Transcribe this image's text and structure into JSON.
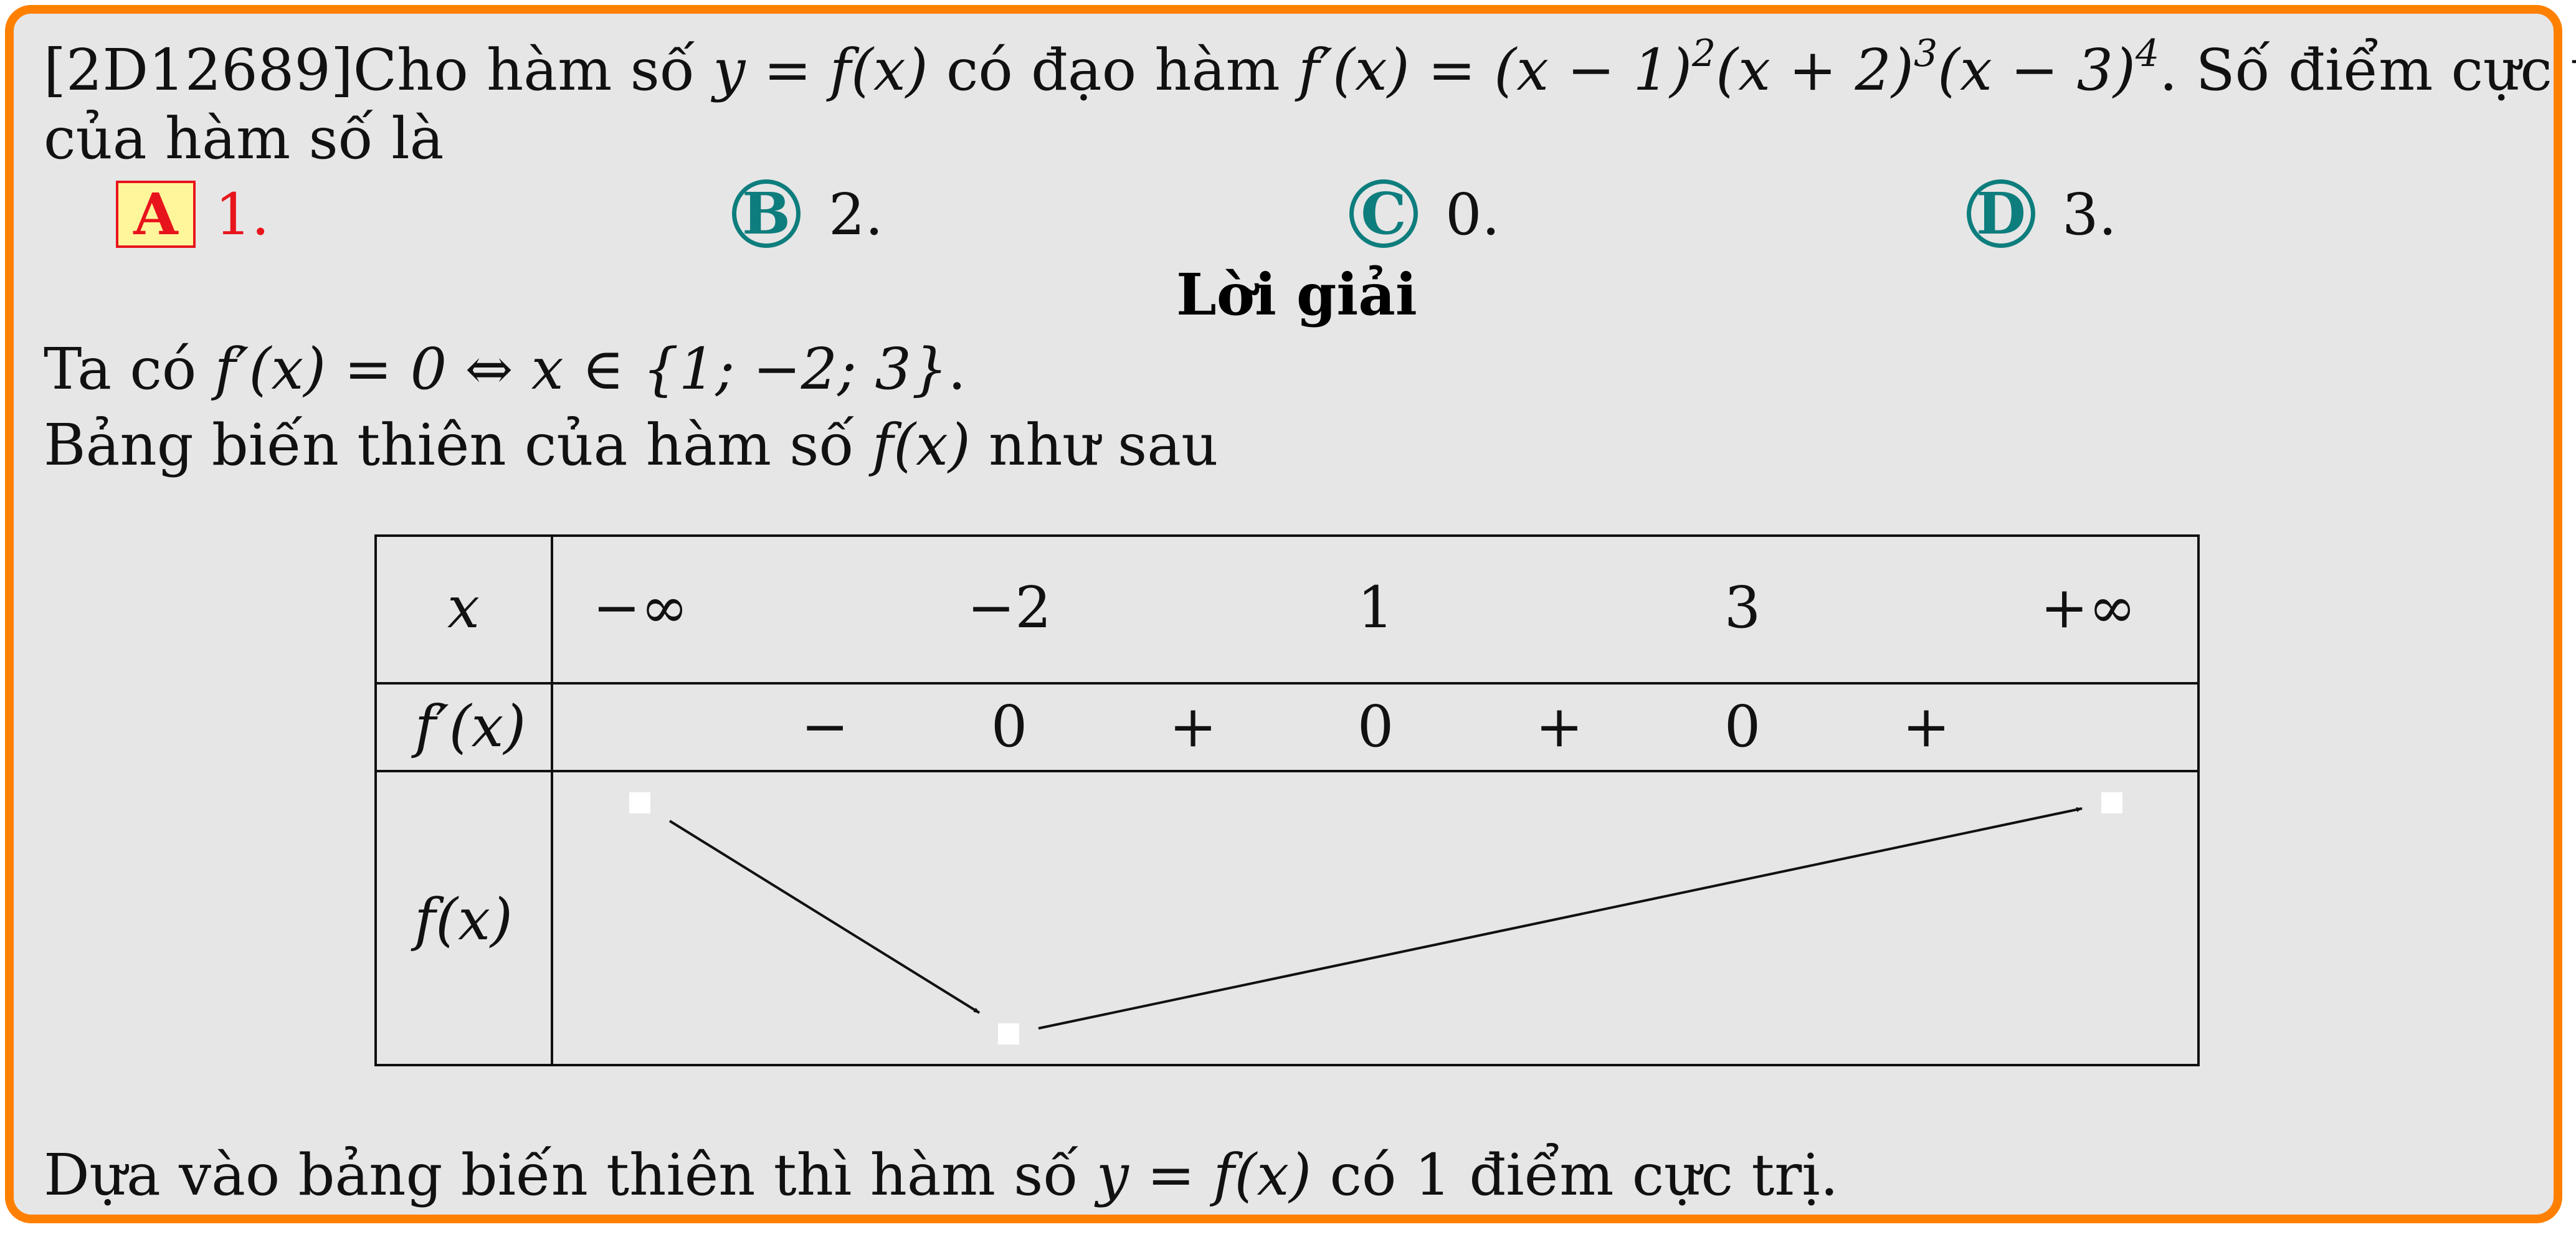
{
  "question": {
    "id": "[2D12689]",
    "text_prefix": "Cho hàm số ",
    "func": "y = f(x)",
    "text_mid": " có đạo hàm ",
    "deriv_lhs": "f′(x) = (x − 1)",
    "exp1": "2",
    "factor2": "(x + 2)",
    "exp2": "3",
    "factor3": "(x − 3)",
    "exp3": "4",
    "text_suffix": ". Số điểm cực trị",
    "line2": "của hàm số là"
  },
  "choices": [
    {
      "label": "A",
      "text": "1.",
      "correct": true
    },
    {
      "label": "B",
      "text": "2.",
      "correct": false
    },
    {
      "label": "C",
      "text": "0.",
      "correct": false
    },
    {
      "label": "D",
      "text": "3.",
      "correct": false
    }
  ],
  "solution": {
    "title": "Lời giải",
    "line1_prefix": "Ta có ",
    "line1_math": "f′(x) = 0 ⇔ x ∈ {1; −2; 3}",
    "line1_suffix": ".",
    "line2_prefix": "Bảng biến thiên của hàm số ",
    "line2_math": "f(x)",
    "line2_suffix": " như sau",
    "conclusion_prefix": "Dựa vào bảng biến thiên thì hàm số ",
    "conclusion_math": "y = f(x)",
    "conclusion_suffix": " có 1 điểm cực trị."
  },
  "table": {
    "row_labels": [
      "x",
      "f′(x)",
      "f(x)"
    ],
    "x_values": [
      "−∞",
      "−2",
      "1",
      "3",
      "+∞"
    ],
    "signs": [
      "−",
      "0",
      "+",
      "0",
      "+",
      "0",
      "+"
    ]
  },
  "colors": {
    "frame": "#ff8000",
    "background": "#e6e6e6",
    "choice": "#0e7d7d",
    "correct": "#e8141c",
    "correct_bg": "#fff59a"
  }
}
